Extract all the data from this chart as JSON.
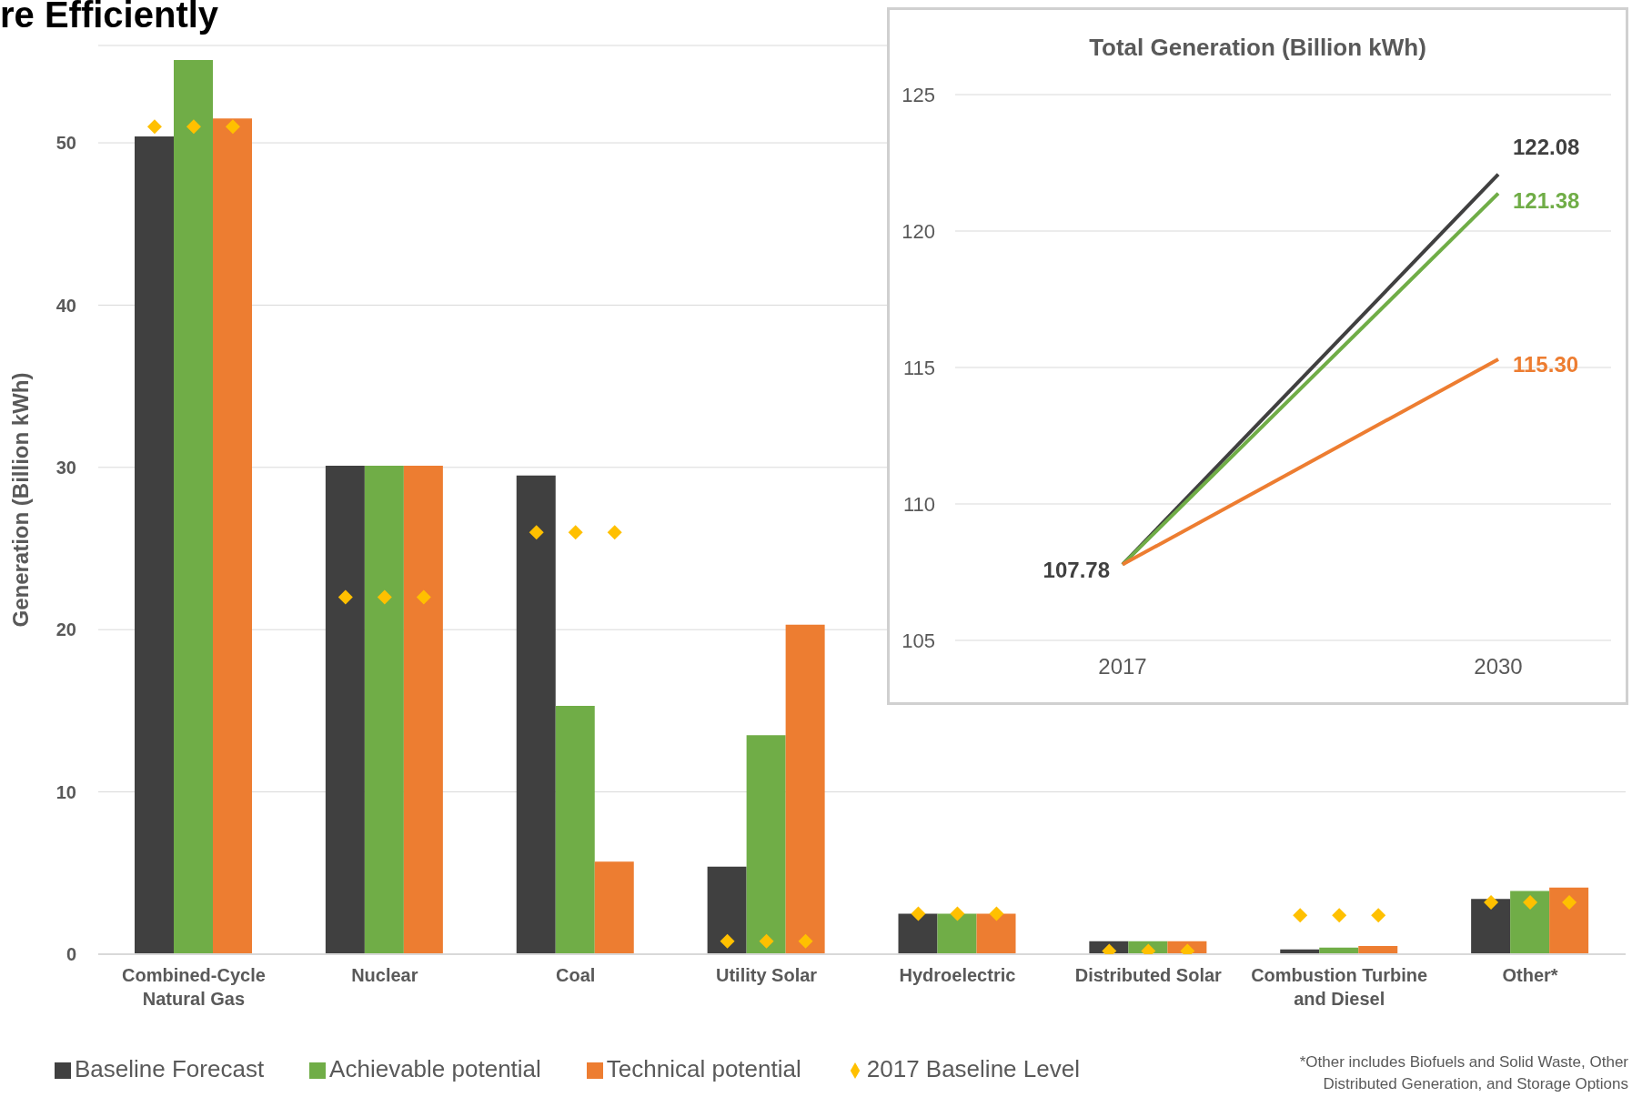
{
  "chart_data": [
    {
      "type": "bar",
      "title": "re Efficiently",
      "ylabel": "Generation (Billion kWh)",
      "categories": [
        "Combined-Cycle Natural Gas",
        "Nuclear",
        "Coal",
        "Utility Solar",
        "Hydroelectric",
        "Distributed Solar",
        "Combustion Turbine and Diesel",
        "Other*"
      ],
      "series": [
        {
          "name": "Baseline Forecast",
          "color": "#404040",
          "values": [
            50.4,
            30.1,
            29.5,
            5.4,
            2.5,
            0.8,
            0.3,
            3.4
          ]
        },
        {
          "name": "Achievable potential",
          "color": "#70ad47",
          "values": [
            55.1,
            30.1,
            15.3,
            13.5,
            2.5,
            0.8,
            0.4,
            3.9
          ]
        },
        {
          "name": "Technical potential",
          "color": "#ed7d31",
          "values": [
            51.5,
            30.1,
            5.7,
            20.3,
            2.5,
            0.8,
            0.5,
            4.1
          ]
        },
        {
          "name": "2017 Baseline Level",
          "type": "scatter",
          "color": "#ffc000",
          "marker": "diamond",
          "x": [
            "Combined-Cycle Natural Gas",
            "Combined-Cycle Natural Gas",
            "Combined-Cycle Natural Gas",
            "Nuclear",
            "Nuclear",
            "Nuclear",
            "Coal",
            "Coal",
            "Coal",
            "Utility Solar",
            "Utility Solar",
            "Utility Solar",
            "Hydroelectric",
            "Hydroelectric",
            "Hydroelectric",
            "Distributed Solar",
            "Distributed Solar",
            "Distributed Solar",
            "Combustion Turbine and Diesel",
            "Combustion Turbine and Diesel",
            "Combustion Turbine and Diesel",
            "Other*",
            "Other*",
            "Other*"
          ],
          "values": [
            51.0,
            51.0,
            51.0,
            22.0,
            22.0,
            22.0,
            26.0,
            26.0,
            26.0,
            0.8,
            0.8,
            0.8,
            2.5,
            2.5,
            2.5,
            0.2,
            0.2,
            0.2,
            2.4,
            2.4,
            2.4,
            3.2,
            3.2,
            3.2
          ]
        }
      ],
      "ylim": [
        0,
        56
      ],
      "yticks": [
        0,
        10,
        20,
        30,
        40,
        50
      ],
      "grid": "y",
      "legend": "bottom",
      "annotations": [
        "*Other includes Biofuels and Solid Waste, Other Distributed Generation, and Storage Options"
      ]
    },
    {
      "type": "line",
      "title": "Total Generation (Billion kWh)",
      "categories": [
        "2017",
        "2030"
      ],
      "series": [
        {
          "color": "#404040",
          "values": [
            107.78,
            122.08
          ],
          "value_labels": [
            "107.78",
            "122.08"
          ]
        },
        {
          "color": "#70ad47",
          "values": [
            107.78,
            121.38
          ],
          "value_labels": [
            null,
            "121.38"
          ]
        },
        {
          "color": "#ed7d31",
          "values": [
            107.78,
            115.3
          ],
          "value_labels": [
            null,
            "115.30"
          ]
        }
      ],
      "ylim": [
        105,
        125
      ],
      "yticks": [
        105,
        110,
        115,
        120,
        125
      ],
      "grid": "y"
    }
  ]
}
